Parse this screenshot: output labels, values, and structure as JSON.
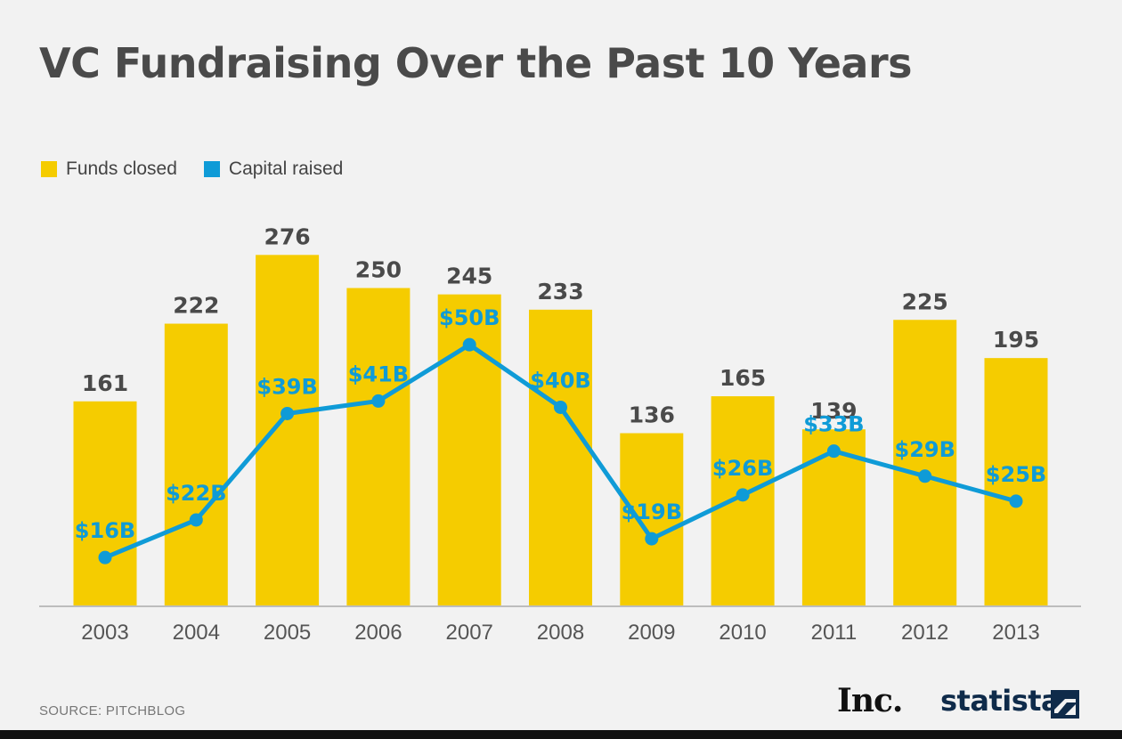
{
  "header": {
    "title": "VC Fundraising Over the Past 10 Years"
  },
  "legend": {
    "funds_label": "Funds closed",
    "capital_label": "Capital raised"
  },
  "colors": {
    "bar": "#f5cc00",
    "line": "#0f9bd7",
    "bar_label": "#4a4a4a",
    "axis": "#bdbdbd"
  },
  "chart_data": {
    "type": "bar",
    "categories": [
      "2003",
      "2004",
      "2005",
      "2006",
      "2007",
      "2008",
      "2009",
      "2010",
      "2011",
      "2012",
      "2013"
    ],
    "series": [
      {
        "name": "Funds closed",
        "type": "bar",
        "values": [
          161,
          222,
          276,
          250,
          245,
          233,
          136,
          165,
          139,
          225,
          195
        ]
      },
      {
        "name": "Capital raised",
        "type": "line",
        "values": [
          16,
          22,
          39,
          41,
          50,
          40,
          19,
          26,
          33,
          29,
          25
        ],
        "labels": [
          "$16B",
          "$22B",
          "$39B",
          "$41B",
          "$50B",
          "$40B",
          "$19B",
          "$26B",
          "$33B",
          "$29B",
          "$25B"
        ]
      }
    ],
    "title": "VC Fundraising Over the Past 10 Years",
    "legend_position": "top-left",
    "grid": false
  },
  "footer": {
    "source": "SOURCE: PITCHBLOG",
    "logo_inc": "Inc.",
    "logo_statista": "statista"
  }
}
